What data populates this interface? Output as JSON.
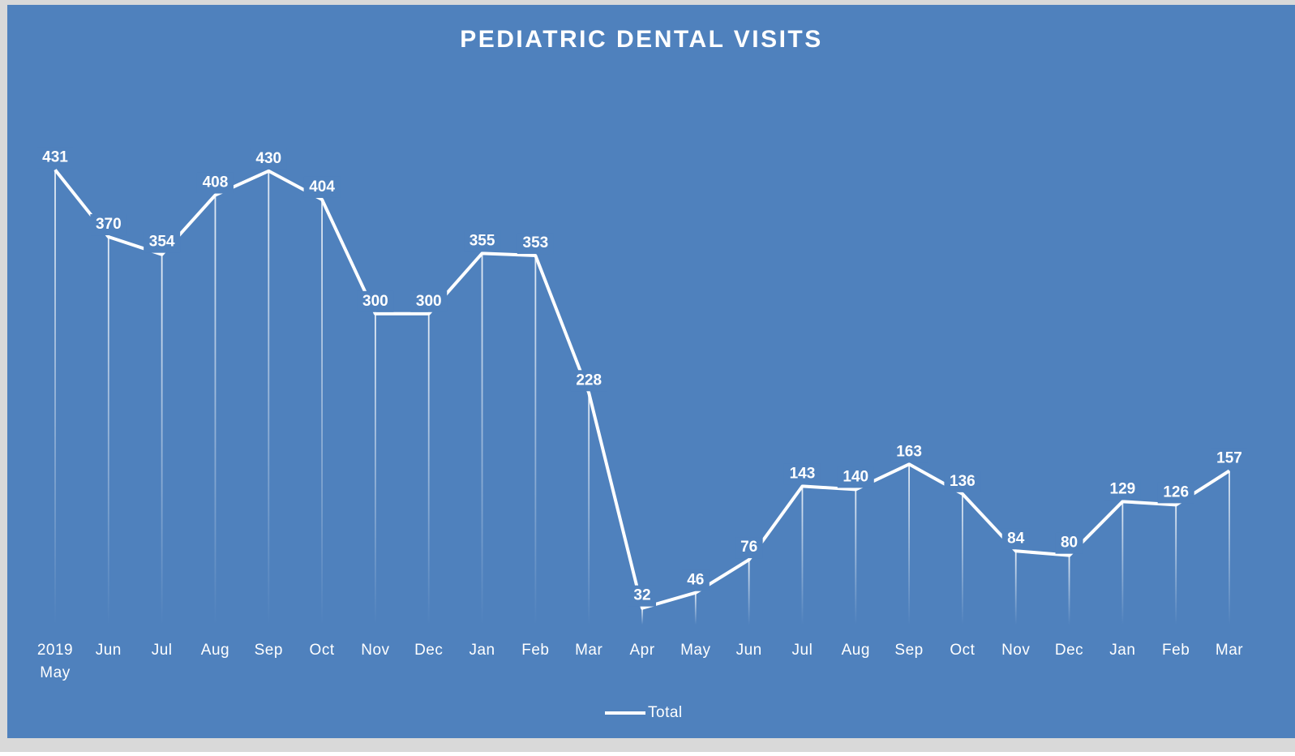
{
  "chart_data": {
    "type": "line",
    "title": "PEDIATRIC DENTAL VISITS",
    "categories": [
      "2019 May",
      "Jun",
      "Jul",
      "Aug",
      "Sep",
      "Oct",
      "Nov",
      "Dec",
      "Jan",
      "Feb",
      "Mar",
      "Apr",
      "May",
      "Jun",
      "Jul",
      "Aug",
      "Sep",
      "Oct",
      "Nov",
      "Dec",
      "Jan",
      "Feb",
      "Mar"
    ],
    "series": [
      {
        "name": "Total",
        "color": "#ffffff",
        "values": [
          431,
          370,
          354,
          408,
          430,
          404,
          300,
          300,
          355,
          353,
          228,
          32,
          46,
          76,
          143,
          140,
          163,
          136,
          84,
          80,
          129,
          126,
          157
        ]
      }
    ],
    "ylim": [
      0,
      500
    ],
    "legend": "bottom",
    "drop_lines": true
  }
}
